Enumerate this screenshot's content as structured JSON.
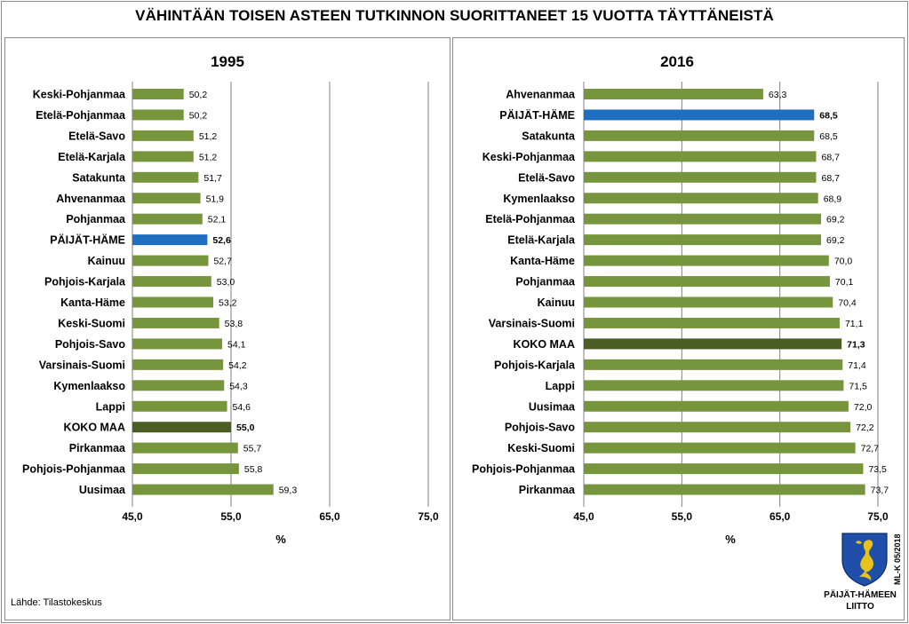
{
  "title": "VÄHINTÄÄN TOISEN ASTEEN TUTKINNON SUORITTANEET 15 VUOTTA TÄYTTÄNEISTÄ",
  "source": "Lähde: Tilastokeskus",
  "logo": {
    "caption_line1": "PÄIJÄT-HÄMEEN",
    "caption_line2": "LIITTO",
    "code": "ML-K 05/2018",
    "icon": "mermaid-shield-icon",
    "shield_color": "#1f4fa8",
    "figure_color": "#e8c21a"
  },
  "colors": {
    "default": "#77953c",
    "highlight": "#1f6fc1",
    "national": "#4a5e23",
    "gridline": "#808080"
  },
  "chart_data": [
    {
      "type": "bar",
      "orientation": "horizontal",
      "title": "1995",
      "xlabel": "%",
      "xlim": [
        45,
        75
      ],
      "xticks": [
        "45,0",
        "55,0",
        "65,0",
        "75,0"
      ],
      "grid": true,
      "legend": "none",
      "categories": [
        "Keski-Pohjanmaa",
        "Etelä-Pohjanmaa",
        "Etelä-Savo",
        "Etelä-Karjala",
        "Satakunta",
        "Ahvenanmaa",
        "Pohjanmaa",
        "PÄIJÄT-HÄME",
        "Kainuu",
        "Pohjois-Karjala",
        "Kanta-Häme",
        "Keski-Suomi",
        "Pohjois-Savo",
        "Varsinais-Suomi",
        "Kymenlaakso",
        "Lappi",
        "KOKO MAA",
        "Pirkanmaa",
        "Pohjois-Pohjanmaa",
        "Uusimaa"
      ],
      "values": [
        50.2,
        50.2,
        51.2,
        51.2,
        51.7,
        51.9,
        52.1,
        52.6,
        52.7,
        53.0,
        53.2,
        53.8,
        54.1,
        54.2,
        54.3,
        54.6,
        55.0,
        55.7,
        55.8,
        59.3
      ],
      "labels": [
        "50,2",
        "50,2",
        "51,2",
        "51,2",
        "51,7",
        "51,9",
        "52,1",
        "52,6",
        "52,7",
        "53,0",
        "53,2",
        "53,8",
        "54,1",
        "54,2",
        "54,3",
        "54,6",
        "55,0",
        "55,7",
        "55,8",
        "59,3"
      ],
      "highlight": "PÄIJÄT-HÄME",
      "national": "KOKO MAA"
    },
    {
      "type": "bar",
      "orientation": "horizontal",
      "title": "2016",
      "xlabel": "%",
      "xlim": [
        45,
        75
      ],
      "xticks": [
        "45,0",
        "55,0",
        "65,0",
        "75,0"
      ],
      "grid": true,
      "legend": "none",
      "categories": [
        "Ahvenanmaa",
        "PÄIJÄT-HÄME",
        "Satakunta",
        "Keski-Pohjanmaa",
        "Etelä-Savo",
        "Kymenlaakso",
        "Etelä-Pohjanmaa",
        "Etelä-Karjala",
        "Kanta-Häme",
        "Pohjanmaa",
        "Kainuu",
        "Varsinais-Suomi",
        "KOKO MAA",
        "Pohjois-Karjala",
        "Lappi",
        "Uusimaa",
        "Pohjois-Savo",
        "Keski-Suomi",
        "Pohjois-Pohjanmaa",
        "Pirkanmaa"
      ],
      "values": [
        63.3,
        68.5,
        68.5,
        68.7,
        68.7,
        68.9,
        69.2,
        69.2,
        70.0,
        70.1,
        70.4,
        71.1,
        71.3,
        71.4,
        71.5,
        72.0,
        72.2,
        72.7,
        73.5,
        73.7
      ],
      "labels": [
        "63,3",
        "68,5",
        "68,5",
        "68,7",
        "68,7",
        "68,9",
        "69,2",
        "69,2",
        "70,0",
        "70,1",
        "70,4",
        "71,1",
        "71,3",
        "71,4",
        "71,5",
        "72,0",
        "72,2",
        "72,7",
        "73,5",
        "73,7"
      ],
      "highlight": "PÄIJÄT-HÄME",
      "national": "KOKO MAA"
    }
  ]
}
